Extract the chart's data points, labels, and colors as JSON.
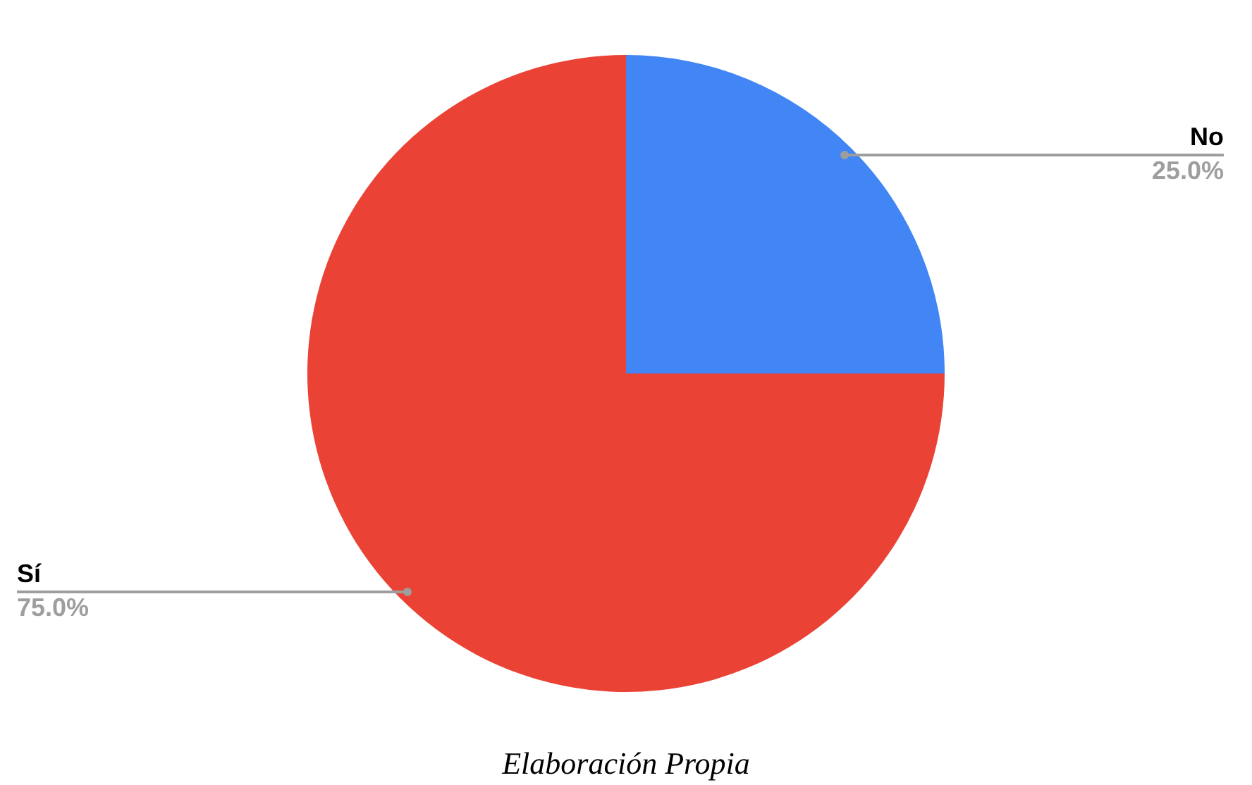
{
  "chart_data": {
    "type": "pie",
    "categories": [
      "No",
      "Sí"
    ],
    "values": [
      25,
      75
    ],
    "colors": [
      "#4285f4",
      "#ea4335"
    ],
    "value_labels": [
      "25.0%",
      "75.0%"
    ],
    "annotations": [
      "Elaboración Propia"
    ]
  }
}
